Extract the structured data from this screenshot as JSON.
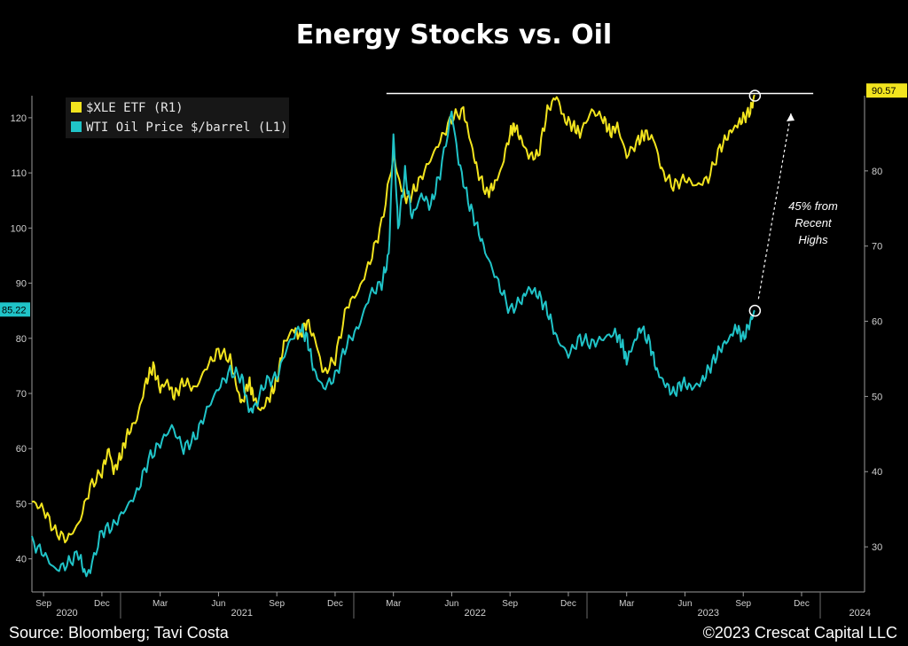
{
  "title": "Energy Stocks vs. Oil",
  "footer": {
    "source": "Source: Bloomberg; Tavi Costa",
    "copyright": "©2023 Crescat Capital LLC"
  },
  "colors": {
    "background": "#000000",
    "xle": "#f2e41e",
    "wti": "#20c4c8",
    "axis_left": "#cfcfcf",
    "axis_right": "#e8d85a",
    "badge_left_bg": "#20c4c8",
    "badge_right_bg": "#f2e41e"
  },
  "chart_data": {
    "type": "line",
    "legend": {
      "placement": "top-left",
      "entries": [
        "$XLE ETF (R1)",
        "WTI Oil Price $/barrel (L1)"
      ]
    },
    "x_ticks": [
      {
        "t": 0.0,
        "label": "Sep"
      },
      {
        "t": 0.25,
        "label": "Dec"
      },
      {
        "t": 0.5,
        "label": "Mar"
      },
      {
        "t": 0.75,
        "label": "Jun"
      },
      {
        "t": 1.0,
        "label": "Sep"
      },
      {
        "t": 1.25,
        "label": "Dec"
      },
      {
        "t": 1.5,
        "label": "Mar"
      },
      {
        "t": 1.75,
        "label": "Jun"
      },
      {
        "t": 2.0,
        "label": "Sep"
      },
      {
        "t": 2.25,
        "label": "Dec"
      },
      {
        "t": 2.5,
        "label": "Mar"
      },
      {
        "t": 2.75,
        "label": "Jun"
      },
      {
        "t": 3.0,
        "label": "Sep"
      },
      {
        "t": 3.25,
        "label": "Dec"
      }
    ],
    "x_years": [
      {
        "t": 0.1,
        "label": "2020"
      },
      {
        "t": 0.85,
        "label": "2021"
      },
      {
        "t": 1.85,
        "label": "2022"
      },
      {
        "t": 2.85,
        "label": "2023"
      },
      {
        "t": 3.5,
        "label": "2024"
      }
    ],
    "x_range": [
      -0.05,
      3.52
    ],
    "left_axis": {
      "ticks": [
        40,
        50,
        60,
        70,
        80,
        90,
        100,
        110,
        120
      ],
      "range": [
        34,
        124
      ],
      "last_value_label": "85.22",
      "last_value": 85.22
    },
    "right_axis": {
      "ticks": [
        30,
        40,
        50,
        60,
        70,
        80
      ],
      "range": [
        24,
        90
      ],
      "last_value_label": "90.57",
      "last_value": 90.57
    },
    "horizontal_line": {
      "right_value": 90.3,
      "x_from": 1.47,
      "x_to": 3.3
    },
    "annotation": {
      "lines": [
        "45% from",
        "Recent",
        "Highs"
      ]
    },
    "series": [
      {
        "name": "$XLE ETF (R1)",
        "axis": "right",
        "points": [
          [
            -0.05,
            36
          ],
          [
            0.0,
            35
          ],
          [
            0.05,
            32
          ],
          [
            0.1,
            31
          ],
          [
            0.15,
            33
          ],
          [
            0.2,
            38
          ],
          [
            0.25,
            40
          ],
          [
            0.28,
            43
          ],
          [
            0.3,
            40
          ],
          [
            0.33,
            42
          ],
          [
            0.36,
            45
          ],
          [
            0.4,
            47
          ],
          [
            0.44,
            52
          ],
          [
            0.47,
            54
          ],
          [
            0.5,
            51
          ],
          [
            0.53,
            52
          ],
          [
            0.56,
            50
          ],
          [
            0.6,
            52
          ],
          [
            0.65,
            51
          ],
          [
            0.7,
            54
          ],
          [
            0.75,
            56
          ],
          [
            0.8,
            55
          ],
          [
            0.83,
            51
          ],
          [
            0.85,
            49
          ],
          [
            0.88,
            52
          ],
          [
            0.9,
            50
          ],
          [
            0.93,
            48
          ],
          [
            0.97,
            50
          ],
          [
            1.0,
            52
          ],
          [
            1.03,
            57
          ],
          [
            1.07,
            59
          ],
          [
            1.1,
            58
          ],
          [
            1.13,
            60
          ],
          [
            1.17,
            57
          ],
          [
            1.2,
            53
          ],
          [
            1.25,
            55
          ],
          [
            1.3,
            62
          ],
          [
            1.35,
            64
          ],
          [
            1.4,
            68
          ],
          [
            1.45,
            73
          ],
          [
            1.5,
            82
          ],
          [
            1.53,
            78
          ],
          [
            1.56,
            76
          ],
          [
            1.6,
            78
          ],
          [
            1.65,
            81
          ],
          [
            1.7,
            84
          ],
          [
            1.75,
            87
          ],
          [
            1.8,
            88
          ],
          [
            1.83,
            84
          ],
          [
            1.86,
            80
          ],
          [
            1.9,
            77
          ],
          [
            1.93,
            78
          ],
          [
            1.96,
            80
          ],
          [
            2.0,
            85
          ],
          [
            2.02,
            86
          ],
          [
            2.05,
            84
          ],
          [
            2.08,
            82
          ],
          [
            2.12,
            82
          ],
          [
            2.16,
            88
          ],
          [
            2.2,
            90
          ],
          [
            2.23,
            87
          ],
          [
            2.27,
            86
          ],
          [
            2.3,
            85
          ],
          [
            2.35,
            88
          ],
          [
            2.4,
            87
          ],
          [
            2.43,
            85
          ],
          [
            2.46,
            86
          ],
          [
            2.5,
            82
          ],
          [
            2.55,
            84
          ],
          [
            2.58,
            85
          ],
          [
            2.62,
            84
          ],
          [
            2.65,
            80
          ],
          [
            2.7,
            78
          ],
          [
            2.75,
            79
          ],
          [
            2.8,
            78
          ],
          [
            2.85,
            79
          ],
          [
            2.9,
            83
          ],
          [
            2.94,
            85
          ],
          [
            2.97,
            86
          ],
          [
            3.0,
            87
          ],
          [
            3.03,
            88
          ],
          [
            3.05,
            90
          ]
        ]
      },
      {
        "name": "WTI Oil Price $/barrel (L1)",
        "axis": "left",
        "points": [
          [
            -0.05,
            43
          ],
          [
            0.0,
            41
          ],
          [
            0.05,
            38
          ],
          [
            0.1,
            39
          ],
          [
            0.15,
            41
          ],
          [
            0.18,
            37
          ],
          [
            0.2,
            38
          ],
          [
            0.25,
            45
          ],
          [
            0.3,
            46
          ],
          [
            0.35,
            49
          ],
          [
            0.4,
            52
          ],
          [
            0.45,
            58
          ],
          [
            0.5,
            61
          ],
          [
            0.55,
            64
          ],
          [
            0.6,
            60
          ],
          [
            0.65,
            62
          ],
          [
            0.7,
            67
          ],
          [
            0.75,
            71
          ],
          [
            0.8,
            74
          ],
          [
            0.85,
            73
          ],
          [
            0.88,
            67
          ],
          [
            0.9,
            67
          ],
          [
            0.95,
            72
          ],
          [
            1.0,
            73
          ],
          [
            1.05,
            79
          ],
          [
            1.1,
            82
          ],
          [
            1.13,
            80
          ],
          [
            1.16,
            74
          ],
          [
            1.2,
            71
          ],
          [
            1.25,
            73
          ],
          [
            1.3,
            79
          ],
          [
            1.35,
            82
          ],
          [
            1.4,
            88
          ],
          [
            1.45,
            90
          ],
          [
            1.48,
            95
          ],
          [
            1.5,
            117
          ],
          [
            1.52,
            100
          ],
          [
            1.55,
            110
          ],
          [
            1.58,
            102
          ],
          [
            1.62,
            106
          ],
          [
            1.66,
            104
          ],
          [
            1.7,
            110
          ],
          [
            1.75,
            121
          ],
          [
            1.78,
            112
          ],
          [
            1.82,
            105
          ],
          [
            1.86,
            100
          ],
          [
            1.9,
            95
          ],
          [
            1.95,
            90
          ],
          [
            2.0,
            85
          ],
          [
            2.05,
            87
          ],
          [
            2.08,
            89
          ],
          [
            2.12,
            88
          ],
          [
            2.16,
            85
          ],
          [
            2.2,
            80
          ],
          [
            2.25,
            77
          ],
          [
            2.3,
            80
          ],
          [
            2.35,
            79
          ],
          [
            2.4,
            80
          ],
          [
            2.45,
            81
          ],
          [
            2.48,
            79
          ],
          [
            2.5,
            76
          ],
          [
            2.53,
            79
          ],
          [
            2.56,
            82
          ],
          [
            2.6,
            79
          ],
          [
            2.63,
            74
          ],
          [
            2.66,
            72
          ],
          [
            2.7,
            70
          ],
          [
            2.74,
            72
          ],
          [
            2.78,
            71
          ],
          [
            2.82,
            72
          ],
          [
            2.86,
            75
          ],
          [
            2.9,
            78
          ],
          [
            2.94,
            80
          ],
          [
            2.97,
            82
          ],
          [
            3.0,
            80
          ],
          [
            3.03,
            83
          ],
          [
            3.05,
            85
          ]
        ]
      }
    ]
  }
}
